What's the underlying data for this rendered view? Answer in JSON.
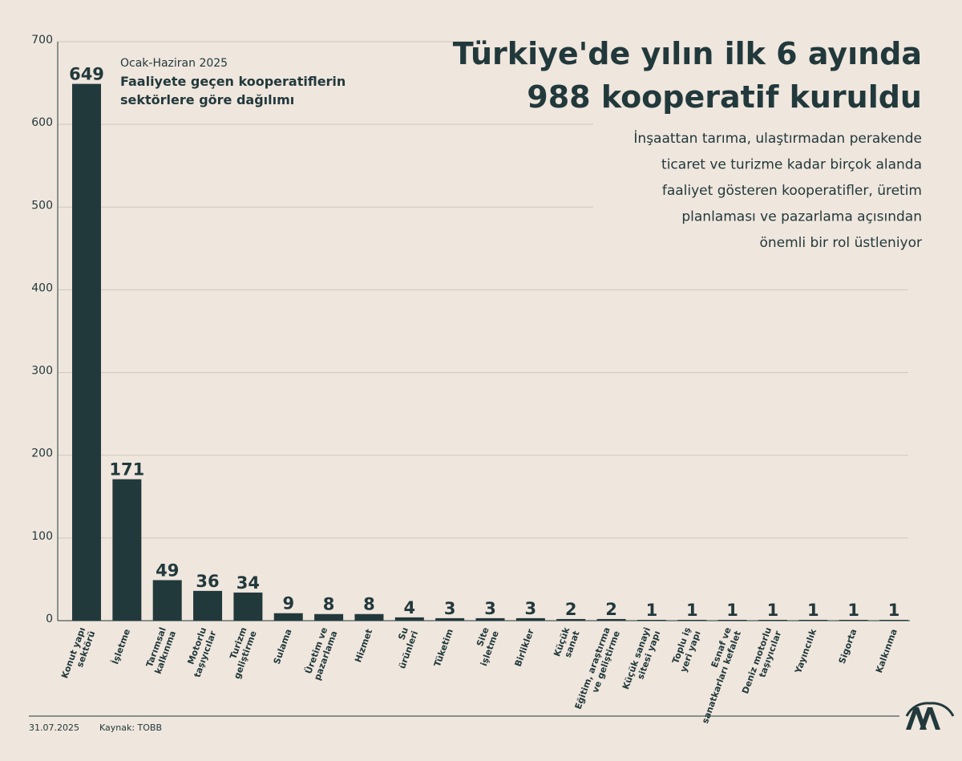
{
  "chart_data": {
    "type": "bar",
    "title": [
      "Türkiye'de yılın ilk 6 ayında",
      "988 kooperatif kuruldu"
    ],
    "description": [
      "İnşaattan tarıma, ulaştırmadan perakende",
      "ticaret ve turizme kadar birçok alanda",
      "faaliyet gösteren kooperatifler, üretim",
      "planlaması ve pazarlama açısından",
      "önemli bir rol üstleniyor"
    ],
    "period": "Ocak-Haziran 2025",
    "subtitle": [
      "Faaliyete geçen kooperatiflerin",
      "sektörlere göre dağılımı"
    ],
    "categories": [
      "Konut yapı sektörü",
      "İşletme",
      "Tarımsal kalkınma",
      "Motorlu taşıyıcılar",
      "Turizm geliştirme",
      "Sulama",
      "Üretim ve pazarlama",
      "Hizmet",
      "Su ürünleri",
      "Tüketim",
      "Site işletme",
      "Birlikler",
      "Küçük sanat",
      "Eğitim, araştırma ve geliştirme",
      "Küçük sanayi sitesi yapı",
      "Toplu iş yeri yapı",
      "Esnaf ve sanatkarları kefalet",
      "Deniz motorlu taşıyıcılar",
      "Yayıncılık",
      "Sigorta",
      "Kalkınma"
    ],
    "values": [
      649,
      171,
      49,
      36,
      34,
      9,
      8,
      8,
      4,
      3,
      3,
      3,
      2,
      2,
      1,
      1,
      1,
      1,
      1,
      1,
      1
    ],
    "color": "#22393c",
    "ylim": [
      0,
      700
    ],
    "yticks": [
      0,
      100,
      200,
      300,
      400,
      500,
      600,
      700
    ],
    "grid": true,
    "date": "31.07.2025",
    "source": "Kaynak: TOBB"
  }
}
